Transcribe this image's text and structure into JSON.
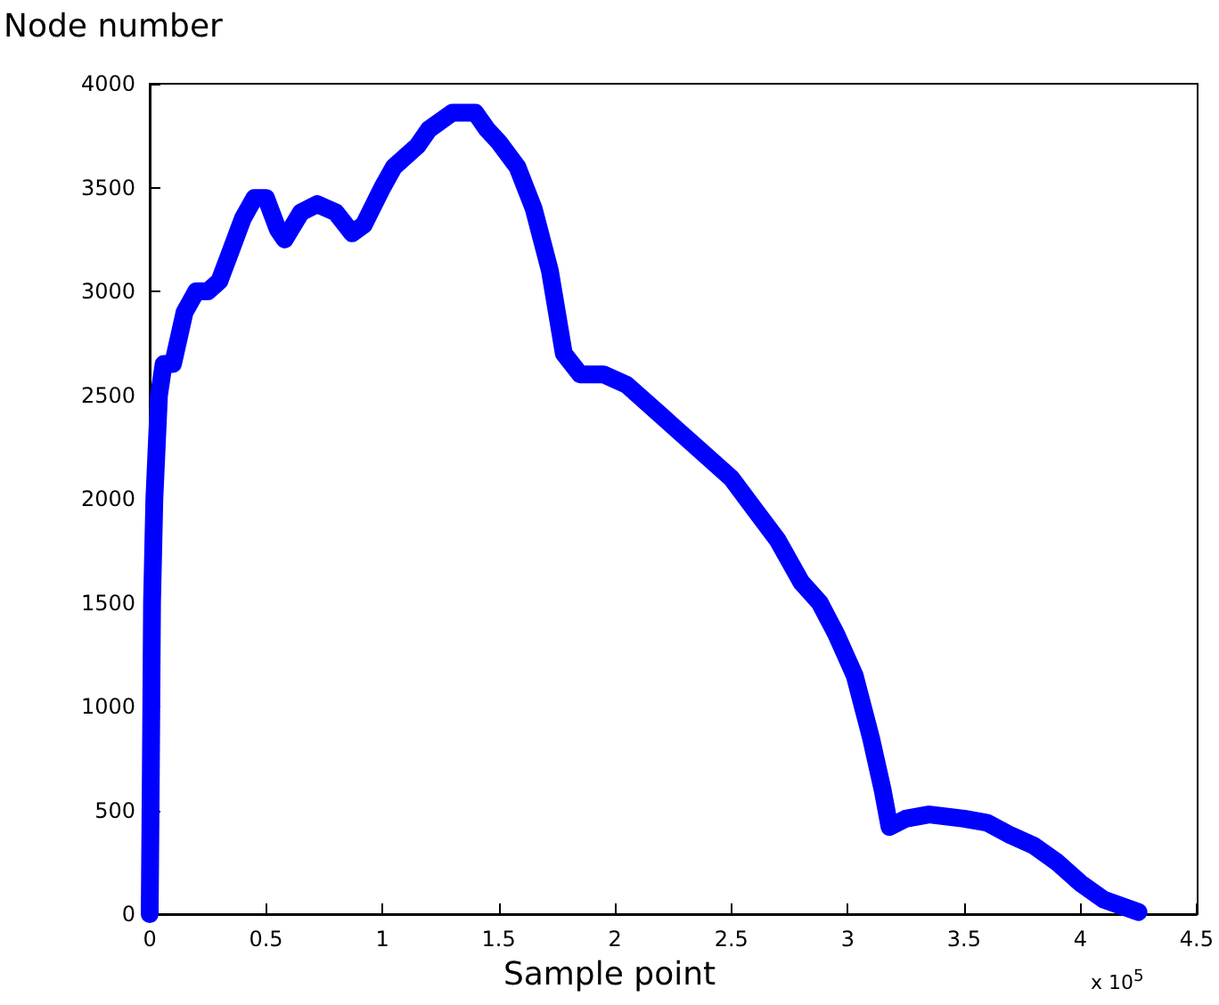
{
  "chart_data": {
    "type": "line",
    "ylabel": "Node number",
    "xlabel": "Sample point",
    "annotations": [
      "x 10$^{5}$"
    ],
    "x": [
      0,
      0.005,
      0.01,
      0.02,
      0.04,
      0.06,
      0.1,
      0.15,
      0.2,
      0.25,
      0.3,
      0.35,
      0.4,
      0.45,
      0.5,
      0.55,
      0.58,
      0.65,
      0.72,
      0.8,
      0.87,
      0.92,
      1.0,
      1.05,
      1.15,
      1.2,
      1.3,
      1.4,
      1.45,
      1.5,
      1.58,
      1.65,
      1.72,
      1.78,
      1.85,
      1.95,
      2.05,
      2.2,
      2.35,
      2.5,
      2.6,
      2.7,
      2.8,
      2.88,
      2.95,
      3.03,
      3.1,
      3.15,
      3.18,
      3.25,
      3.35,
      3.5,
      3.6,
      3.7,
      3.8,
      3.9,
      4.0,
      4.1,
      4.25
    ],
    "series": [
      {
        "color": "#0000ff",
        "values": [
          0,
          700,
          1500,
          2000,
          2500,
          2650,
          2650,
          2900,
          3000,
          3000,
          3050,
          3200,
          3350,
          3450,
          3450,
          3300,
          3250,
          3380,
          3420,
          3380,
          3280,
          3320,
          3500,
          3600,
          3700,
          3780,
          3860,
          3860,
          3780,
          3720,
          3600,
          3400,
          3100,
          2700,
          2600,
          2600,
          2550,
          2400,
          2250,
          2100,
          1950,
          1800,
          1600,
          1500,
          1350,
          1150,
          850,
          600,
          420,
          460,
          480,
          460,
          440,
          380,
          330,
          250,
          150,
          70,
          10
        ]
      }
    ],
    "xlim": [
      0,
      4.5
    ],
    "xticks": [
      0,
      0.5,
      1,
      1.5,
      2,
      2.5,
      3,
      3.5,
      4,
      4.5
    ],
    "ylim": [
      0,
      4000
    ],
    "yticks": [
      0,
      500,
      1000,
      1500,
      2000,
      2500,
      3000,
      3500,
      4000
    ],
    "line_style": "solid"
  }
}
